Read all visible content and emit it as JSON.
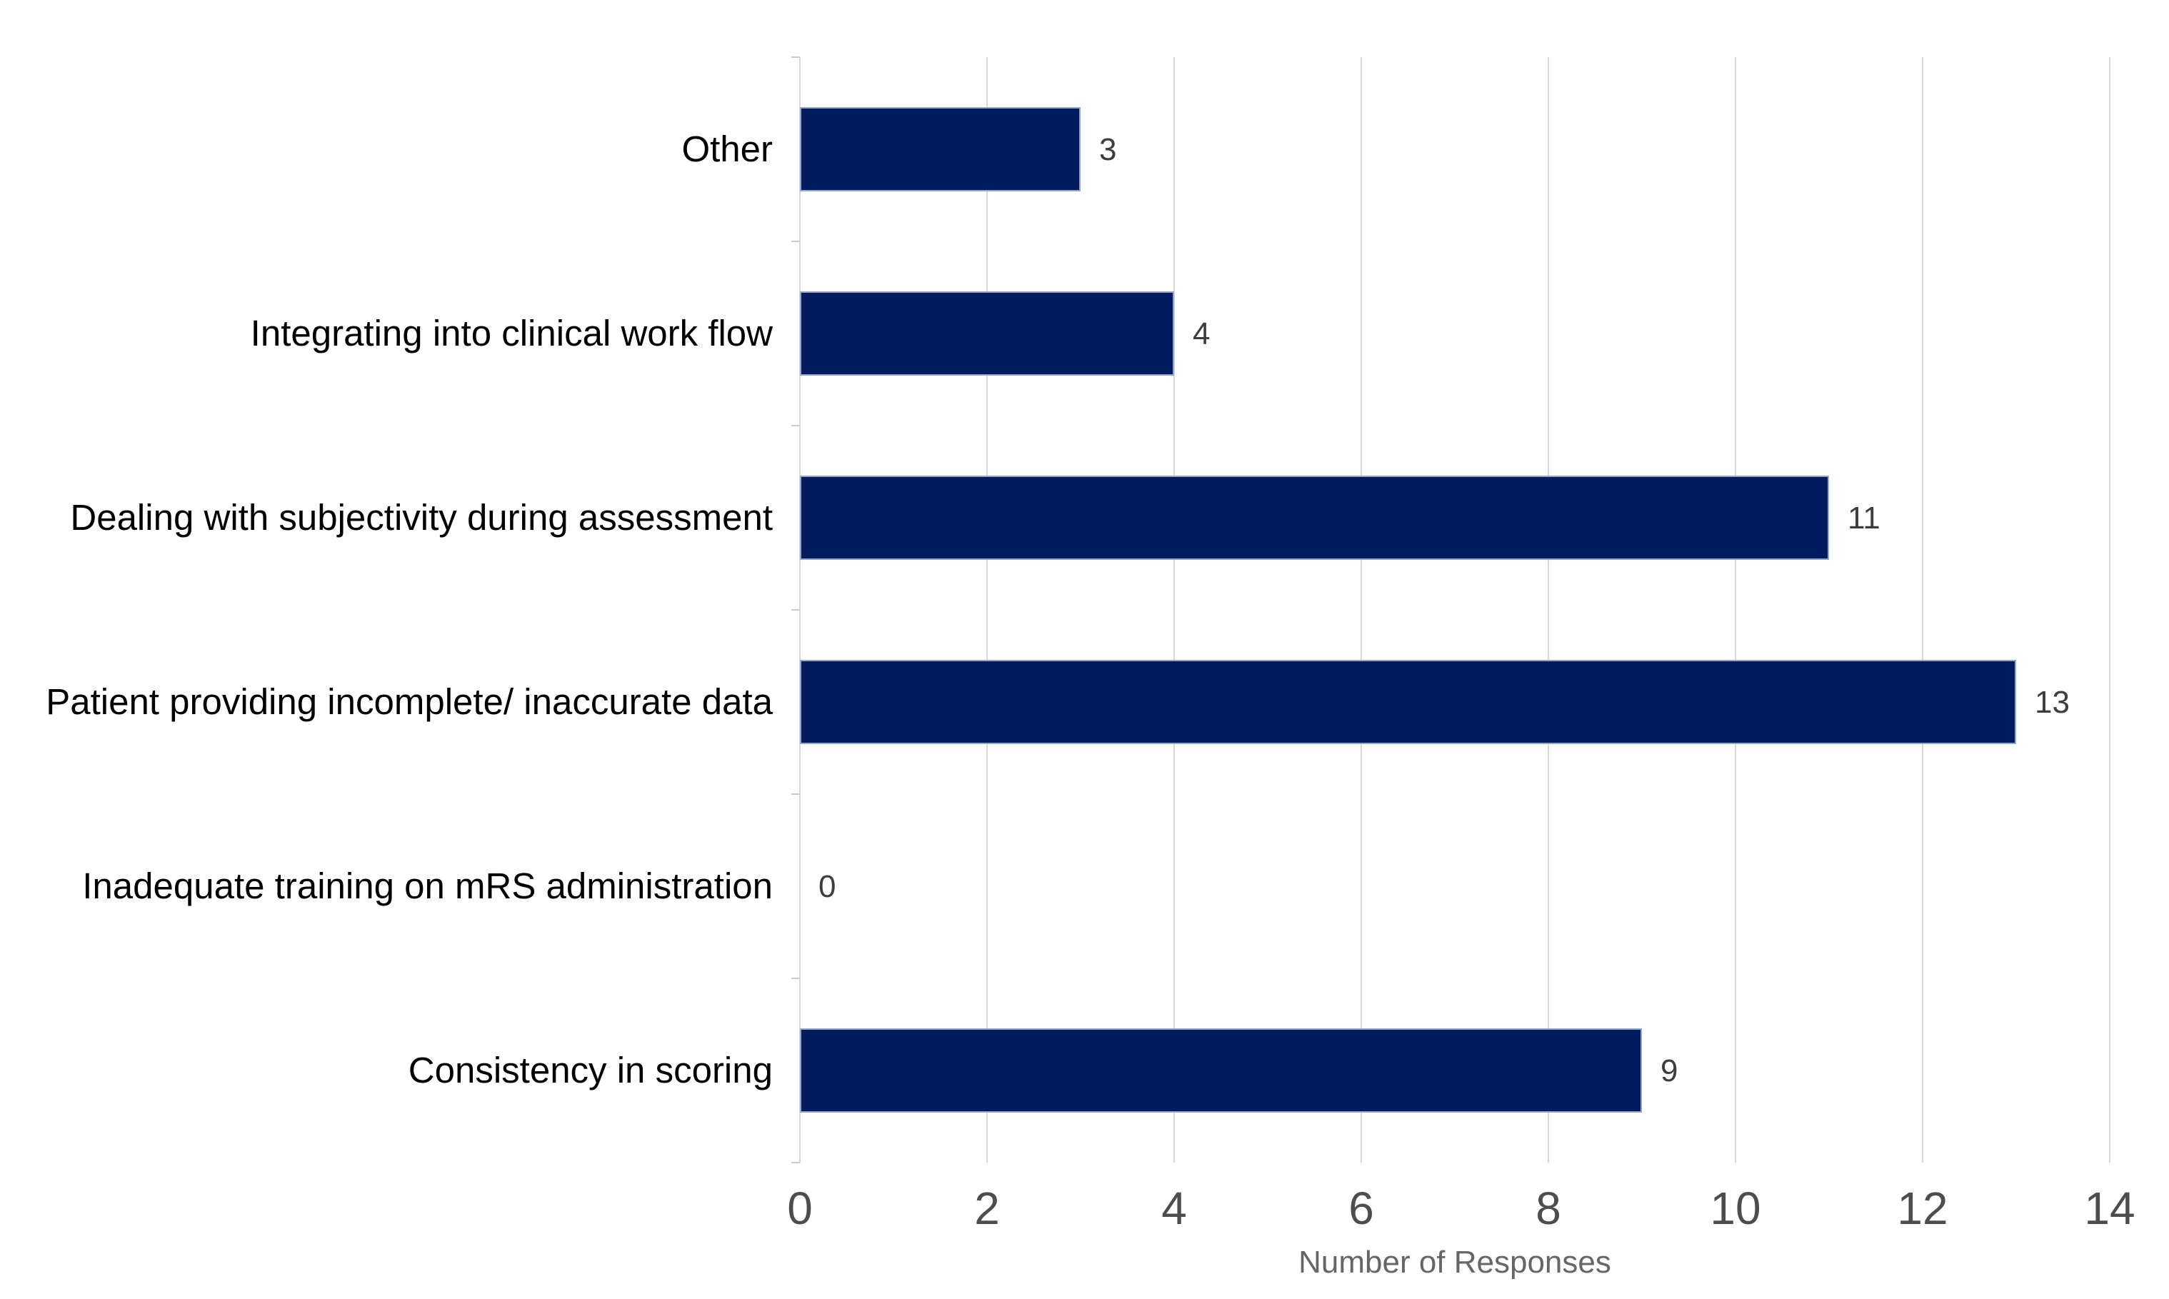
{
  "chart_data": {
    "type": "bar",
    "orientation": "horizontal",
    "title": "",
    "categories": [
      "Other",
      "Integrating into clinical work flow",
      "Dealing with subjectivity during assessment",
      "Patient providing incomplete/ inaccurate data",
      "Inadequate training on mRS administration",
      "Consistency in scoring"
    ],
    "values": [
      3,
      4,
      11,
      13,
      0,
      9
    ],
    "data_labels": [
      "3",
      "4",
      "11",
      "13",
      "0",
      "9"
    ],
    "xlabel": "Number of Responses",
    "ylabel": "",
    "x_ticks": [
      0,
      2,
      4,
      6,
      8,
      10,
      12,
      14
    ],
    "xlim": [
      0,
      14
    ],
    "grid": true,
    "legend_position": "none",
    "colors": {
      "bar_fill": "#021b5e",
      "bar_stroke": "#93a6ca",
      "gridline": "#d9d9d9",
      "axis_tick_mark": "#cccccc",
      "category_text": "#000000",
      "value_text": "#3d3d3d",
      "tick_text": "#4d4d4d",
      "axis_title_text": "#666666"
    }
  }
}
